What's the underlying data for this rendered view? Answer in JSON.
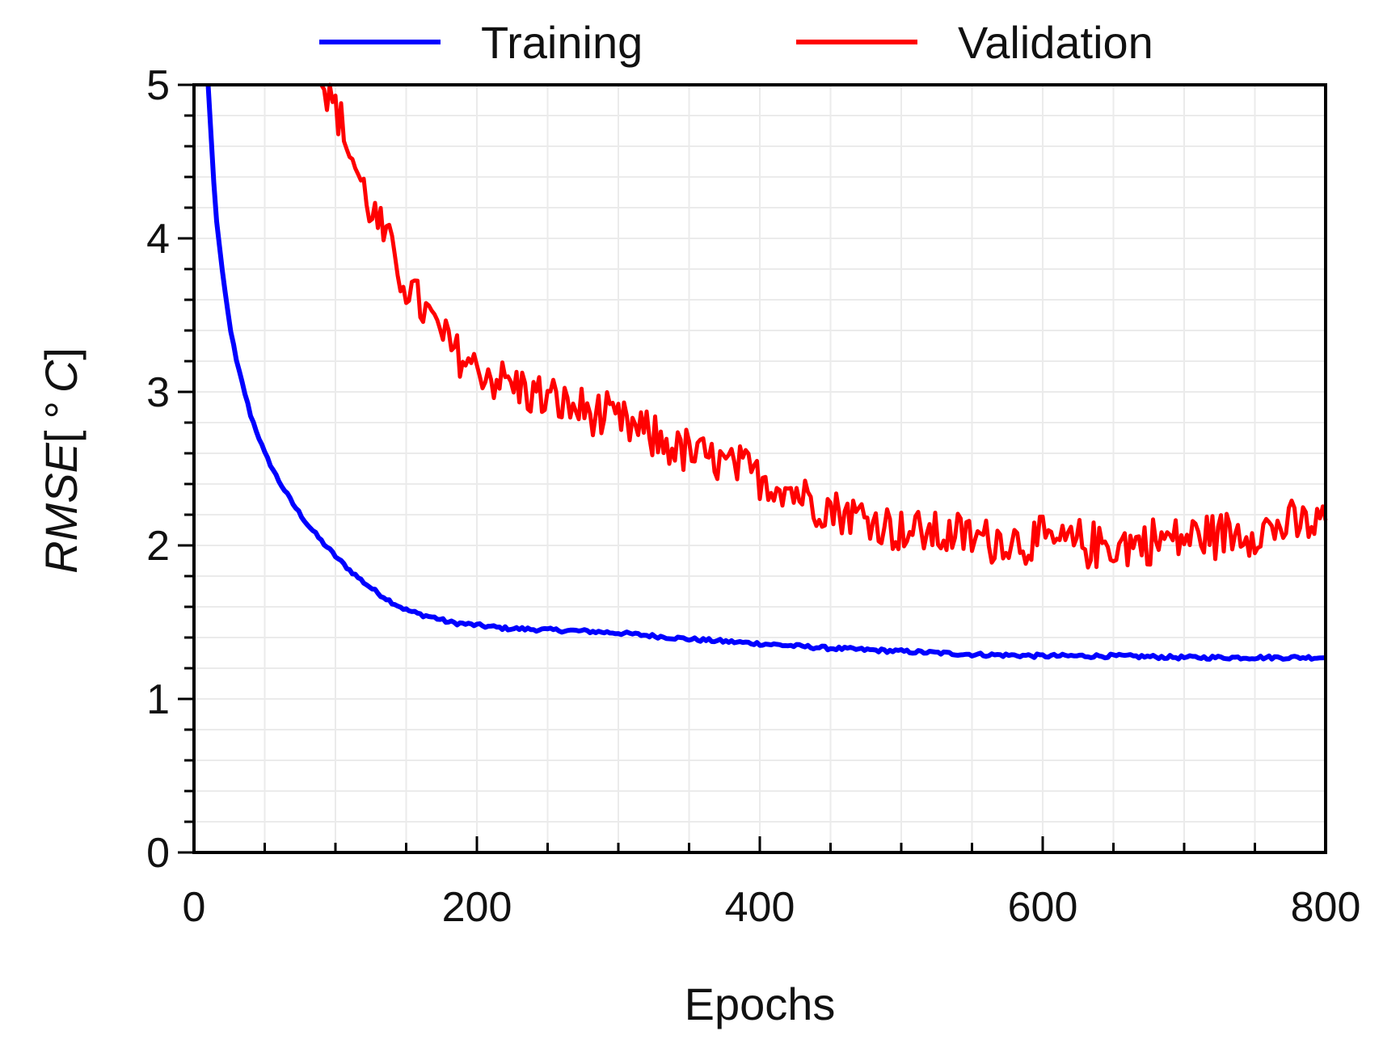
{
  "chart_data": {
    "type": "line",
    "title": "",
    "xlabel": "Epochs",
    "ylabel_parts": {
      "main": "RMSE",
      "open": "[",
      "degree": "°",
      "unit": "C",
      "close": "]"
    },
    "xlim": [
      0,
      800
    ],
    "ylim": [
      0,
      5
    ],
    "xticks": [
      0,
      200,
      400,
      600,
      800
    ],
    "yticks": [
      0,
      1,
      2,
      3,
      4,
      5
    ],
    "x_minor_step": 50,
    "y_minor_step": 0.2,
    "grid": true,
    "legend_position": "top",
    "series": [
      {
        "name": "Training",
        "color": "#0000ff",
        "noise": 0.012,
        "points": [
          [
            10,
            5.0
          ],
          [
            15,
            4.2
          ],
          [
            20,
            3.78
          ],
          [
            25,
            3.45
          ],
          [
            30,
            3.2
          ],
          [
            40,
            2.85
          ],
          [
            50,
            2.6
          ],
          [
            60,
            2.42
          ],
          [
            70,
            2.27
          ],
          [
            80,
            2.14
          ],
          [
            90,
            2.03
          ],
          [
            100,
            1.93
          ],
          [
            110,
            1.84
          ],
          [
            120,
            1.76
          ],
          [
            130,
            1.69
          ],
          [
            140,
            1.63
          ],
          [
            150,
            1.58
          ],
          [
            160,
            1.55
          ],
          [
            170,
            1.53
          ],
          [
            180,
            1.5
          ],
          [
            200,
            1.48
          ],
          [
            220,
            1.46
          ],
          [
            250,
            1.45
          ],
          [
            280,
            1.44
          ],
          [
            300,
            1.43
          ],
          [
            350,
            1.39
          ],
          [
            400,
            1.36
          ],
          [
            450,
            1.33
          ],
          [
            500,
            1.31
          ],
          [
            550,
            1.29
          ],
          [
            600,
            1.28
          ],
          [
            650,
            1.28
          ],
          [
            700,
            1.27
          ],
          [
            750,
            1.27
          ],
          [
            800,
            1.27
          ]
        ]
      },
      {
        "name": "Validation",
        "color": "#ff0000",
        "noise": 0.15,
        "points": [
          [
            90,
            5.0
          ],
          [
            100,
            4.85
          ],
          [
            120,
            4.3
          ],
          [
            150,
            3.7
          ],
          [
            180,
            3.3
          ],
          [
            200,
            3.15
          ],
          [
            250,
            2.95
          ],
          [
            300,
            2.8
          ],
          [
            350,
            2.6
          ],
          [
            400,
            2.45
          ],
          [
            450,
            2.25
          ],
          [
            500,
            2.1
          ],
          [
            550,
            2.05
          ],
          [
            600,
            2.02
          ],
          [
            650,
            2.0
          ],
          [
            700,
            2.05
          ],
          [
            750,
            2.1
          ],
          [
            800,
            2.15
          ]
        ]
      }
    ]
  }
}
